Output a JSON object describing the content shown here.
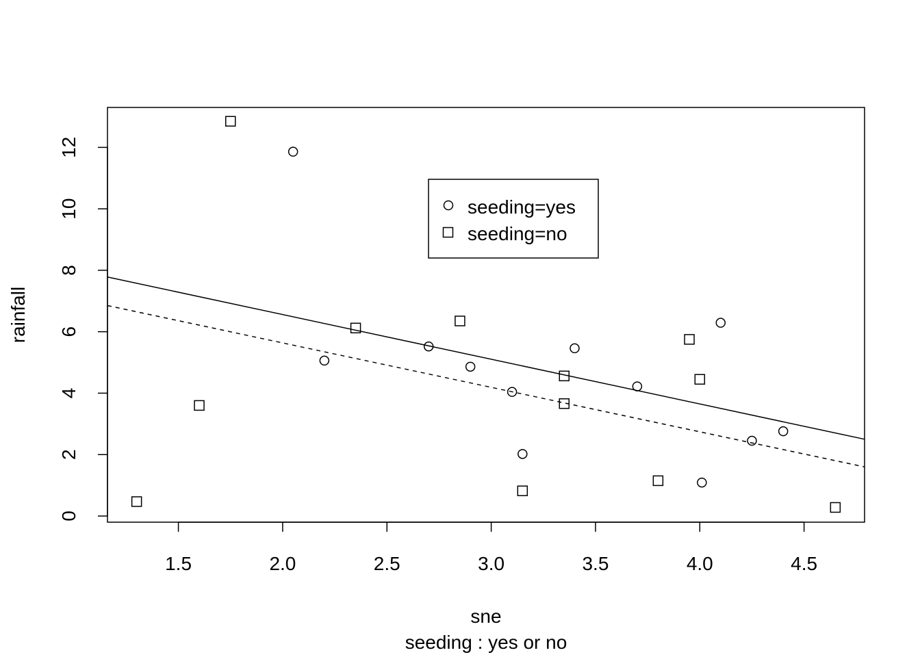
{
  "chart_data": {
    "type": "scatter",
    "title": "",
    "xlabel": "sne",
    "sublabel": "seeding : yes or no",
    "ylabel": "rainfall",
    "xlim": [
      1.16,
      4.79
    ],
    "ylim": [
      -0.2,
      13.3
    ],
    "x_ticks": [
      1.5,
      2.0,
      2.5,
      3.0,
      3.5,
      4.0,
      4.5
    ],
    "x_tick_labels": [
      "1.5",
      "2.0",
      "2.5",
      "3.0",
      "3.5",
      "4.0",
      "4.5"
    ],
    "y_ticks": [
      0,
      2,
      4,
      6,
      8,
      10,
      12
    ],
    "y_tick_labels": [
      "0",
      "2",
      "4",
      "6",
      "8",
      "10",
      "12"
    ],
    "grid": false,
    "legend": {
      "position": "top-center",
      "entries": [
        {
          "label": "seeding=yes",
          "marker": "circle"
        },
        {
          "label": "seeding=no",
          "marker": "square"
        }
      ]
    },
    "series": [
      {
        "name": "seeding=yes",
        "marker": "circle",
        "points": [
          {
            "x": 2.05,
            "y": 11.86
          },
          {
            "x": 2.2,
            "y": 5.06
          },
          {
            "x": 2.7,
            "y": 5.52
          },
          {
            "x": 2.9,
            "y": 4.86
          },
          {
            "x": 3.1,
            "y": 4.04
          },
          {
            "x": 3.15,
            "y": 2.02
          },
          {
            "x": 3.4,
            "y": 5.46
          },
          {
            "x": 3.7,
            "y": 4.22
          },
          {
            "x": 4.01,
            "y": 1.09
          },
          {
            "x": 4.1,
            "y": 6.29
          },
          {
            "x": 4.25,
            "y": 2.45
          },
          {
            "x": 4.4,
            "y": 2.76
          }
        ]
      },
      {
        "name": "seeding=no",
        "marker": "square",
        "points": [
          {
            "x": 1.3,
            "y": 0.47
          },
          {
            "x": 1.6,
            "y": 3.6
          },
          {
            "x": 1.75,
            "y": 12.85
          },
          {
            "x": 2.35,
            "y": 6.12
          },
          {
            "x": 2.85,
            "y": 6.35
          },
          {
            "x": 3.15,
            "y": 0.82
          },
          {
            "x": 3.35,
            "y": 4.56
          },
          {
            "x": 3.35,
            "y": 3.66
          },
          {
            "x": 3.8,
            "y": 1.15
          },
          {
            "x": 3.95,
            "y": 5.75
          },
          {
            "x": 4.0,
            "y": 4.45
          },
          {
            "x": 4.65,
            "y": 0.28
          }
        ]
      }
    ],
    "fit_lines": [
      {
        "series": "seeding=yes",
        "style": "solid",
        "x": [
          1.16,
          4.79
        ],
        "y": [
          7.78,
          2.5
        ]
      },
      {
        "series": "seeding=no",
        "style": "dashed",
        "x": [
          1.16,
          4.79
        ],
        "y": [
          6.85,
          1.6
        ]
      }
    ]
  }
}
